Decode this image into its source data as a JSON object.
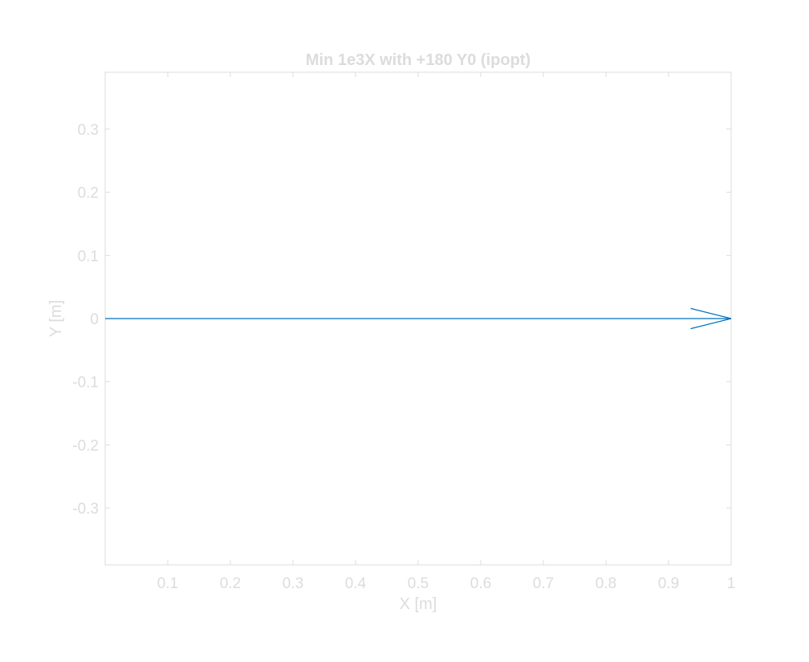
{
  "chart_data": {
    "type": "line",
    "title": "Min 1e3X with +180 Y0 (ipopt)",
    "xlabel": "X [m]",
    "ylabel": "Y [m]",
    "xlim": [
      0,
      1
    ],
    "ylim": [
      -0.39,
      0.39
    ],
    "xticks": [
      0.1,
      0.2,
      0.3,
      0.4,
      0.5,
      0.6,
      0.7,
      0.8,
      0.9,
      1
    ],
    "xtick_labels": [
      "0.1",
      "0.2",
      "0.3",
      "0.4",
      "0.5",
      "0.6",
      "0.7",
      "0.8",
      "0.9",
      "1"
    ],
    "yticks": [
      -0.3,
      -0.2,
      -0.1,
      0,
      0.1,
      0.2,
      0.3
    ],
    "ytick_labels": [
      "-0.3",
      "-0.2",
      "-0.1",
      "0",
      "0.1",
      "0.2",
      "0.3"
    ],
    "grid": false,
    "legend": "none",
    "series": [
      {
        "x": [
          0,
          1
        ],
        "y": [
          0,
          0
        ],
        "marker": "arrowhead at end",
        "color": "#0072bd"
      }
    ]
  },
  "colors": {
    "axis": "#dcdcdc",
    "text": "#dcdcdc",
    "line": "#0072bd",
    "background": "#ffffff"
  }
}
